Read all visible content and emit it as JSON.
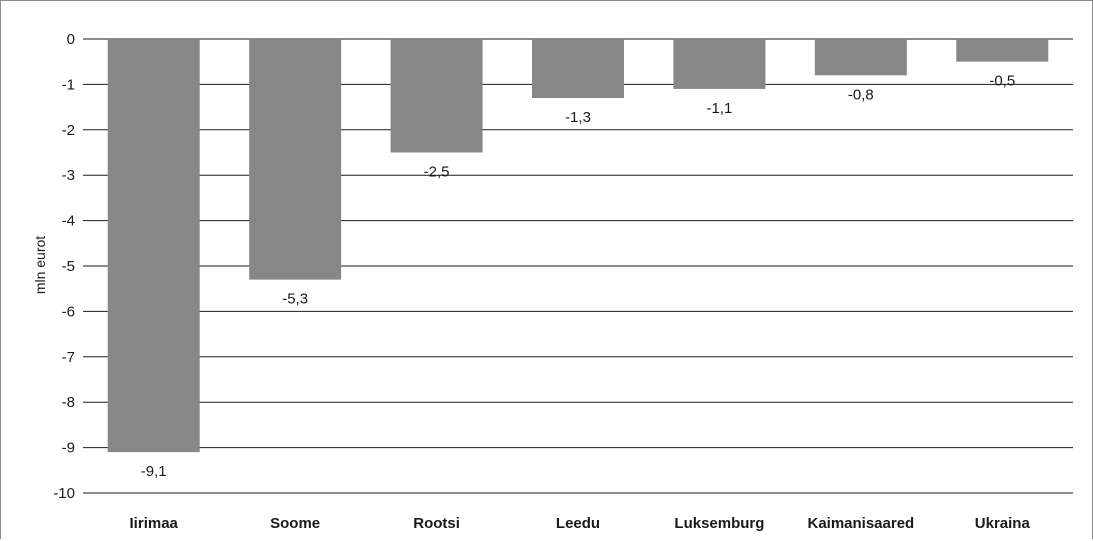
{
  "chart_data": {
    "type": "bar",
    "ylabel": "mln eurot",
    "xlabel": "",
    "categories": [
      "Iirimaa",
      "Soome",
      "Rootsi",
      "Leedu",
      "Luksemburg",
      "Kaimanisaared",
      "Ukraina"
    ],
    "values": [
      -9.1,
      -5.3,
      -2.5,
      -1.3,
      -1.1,
      -0.8,
      -0.5
    ],
    "value_labels": [
      "-9,1",
      "-5,3",
      "-2,5",
      "-1,3",
      "-1,1",
      "-0,8",
      "-0,5"
    ],
    "yticks": [
      "0",
      "-1",
      "-2",
      "-3",
      "-4",
      "-5",
      "-6",
      "-7",
      "-8",
      "-9",
      "-10"
    ],
    "ylim": [
      -10,
      0
    ],
    "grid": true,
    "legend": "none",
    "bar_color": "#878787",
    "grid_color": "#1a1a1a"
  }
}
